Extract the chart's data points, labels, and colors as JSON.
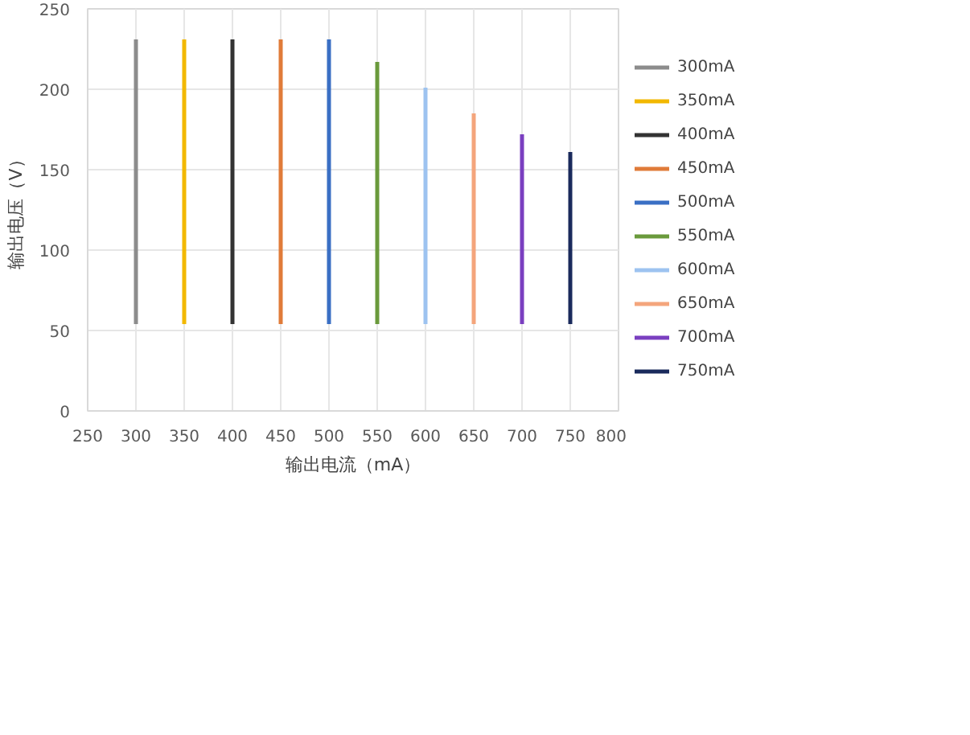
{
  "chart_data": {
    "type": "line",
    "xlabel": "输出电流（mA）",
    "ylabel": "输出电压（V）",
    "xlim": [
      250,
      800
    ],
    "xticks": [
      250,
      300,
      350,
      400,
      450,
      500,
      550,
      600,
      650,
      700,
      750,
      800
    ],
    "ylim": [
      0,
      250
    ],
    "yticks": [
      0,
      50,
      100,
      150,
      200,
      250
    ],
    "grid": true,
    "legend": "right",
    "marker": "none",
    "series": [
      {
        "name": "300mA",
        "color": "#8c8c8c",
        "x": [
          300,
          300
        ],
        "values": [
          54,
          231
        ]
      },
      {
        "name": "350mA",
        "color": "#f2b800",
        "x": [
          350,
          350
        ],
        "values": [
          54,
          231
        ]
      },
      {
        "name": "400mA",
        "color": "#333333",
        "x": [
          400,
          400
        ],
        "values": [
          54,
          231
        ]
      },
      {
        "name": "450mA",
        "color": "#e07b39",
        "x": [
          450,
          450
        ],
        "values": [
          54,
          231
        ]
      },
      {
        "name": "500mA",
        "color": "#3a6fc4",
        "x": [
          500,
          500
        ],
        "values": [
          54,
          231
        ]
      },
      {
        "name": "550mA",
        "color": "#6a9a3c",
        "x": [
          550,
          550
        ],
        "values": [
          54,
          217
        ]
      },
      {
        "name": "600mA",
        "color": "#9dc3f0",
        "x": [
          600,
          600
        ],
        "values": [
          54,
          201
        ]
      },
      {
        "name": "650mA",
        "color": "#f4a57c",
        "x": [
          650,
          650
        ],
        "values": [
          54,
          185
        ]
      },
      {
        "name": "700mA",
        "color": "#7a3fc0",
        "x": [
          700,
          700
        ],
        "values": [
          54,
          172
        ]
      },
      {
        "name": "750mA",
        "color": "#1a2a5c",
        "x": [
          750,
          750
        ],
        "values": [
          54,
          161
        ]
      }
    ]
  }
}
